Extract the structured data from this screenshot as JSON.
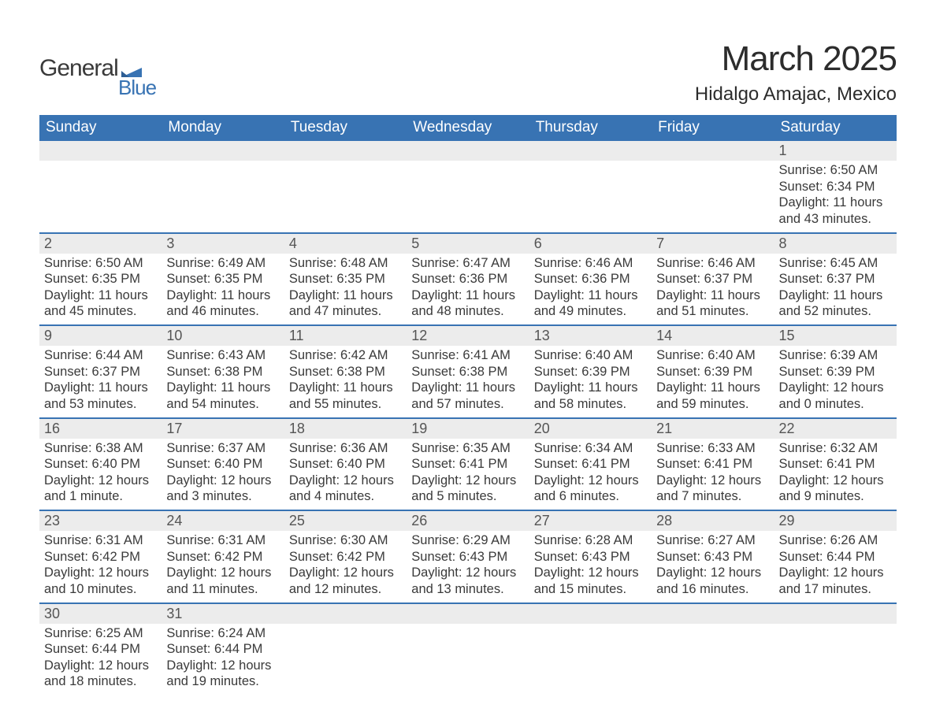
{
  "brand": {
    "name1": "General",
    "name2": "Blue",
    "flag_color": "#3873b3"
  },
  "title": "March 2025",
  "subtitle": "Hidalgo Amajac, Mexico",
  "colors": {
    "header_bg": "#3873b3",
    "header_text": "#ffffff",
    "daynum_bg": "#ececec",
    "row_border": "#3873b3",
    "body_text": "#3a3a3a"
  },
  "fonts": {
    "title_pt": 44,
    "subtitle_pt": 24,
    "weekday_pt": 19,
    "daynum_pt": 18,
    "body_pt": 16.5
  },
  "weekdays": [
    "Sunday",
    "Monday",
    "Tuesday",
    "Wednesday",
    "Thursday",
    "Friday",
    "Saturday"
  ],
  "weeks": [
    [
      null,
      null,
      null,
      null,
      null,
      null,
      {
        "n": "1",
        "sr": "Sunrise: 6:50 AM",
        "ss": "Sunset: 6:34 PM",
        "d1": "Daylight: 11 hours",
        "d2": "and 43 minutes."
      }
    ],
    [
      {
        "n": "2",
        "sr": "Sunrise: 6:50 AM",
        "ss": "Sunset: 6:35 PM",
        "d1": "Daylight: 11 hours",
        "d2": "and 45 minutes."
      },
      {
        "n": "3",
        "sr": "Sunrise: 6:49 AM",
        "ss": "Sunset: 6:35 PM",
        "d1": "Daylight: 11 hours",
        "d2": "and 46 minutes."
      },
      {
        "n": "4",
        "sr": "Sunrise: 6:48 AM",
        "ss": "Sunset: 6:35 PM",
        "d1": "Daylight: 11 hours",
        "d2": "and 47 minutes."
      },
      {
        "n": "5",
        "sr": "Sunrise: 6:47 AM",
        "ss": "Sunset: 6:36 PM",
        "d1": "Daylight: 11 hours",
        "d2": "and 48 minutes."
      },
      {
        "n": "6",
        "sr": "Sunrise: 6:46 AM",
        "ss": "Sunset: 6:36 PM",
        "d1": "Daylight: 11 hours",
        "d2": "and 49 minutes."
      },
      {
        "n": "7",
        "sr": "Sunrise: 6:46 AM",
        "ss": "Sunset: 6:37 PM",
        "d1": "Daylight: 11 hours",
        "d2": "and 51 minutes."
      },
      {
        "n": "8",
        "sr": "Sunrise: 6:45 AM",
        "ss": "Sunset: 6:37 PM",
        "d1": "Daylight: 11 hours",
        "d2": "and 52 minutes."
      }
    ],
    [
      {
        "n": "9",
        "sr": "Sunrise: 6:44 AM",
        "ss": "Sunset: 6:37 PM",
        "d1": "Daylight: 11 hours",
        "d2": "and 53 minutes."
      },
      {
        "n": "10",
        "sr": "Sunrise: 6:43 AM",
        "ss": "Sunset: 6:38 PM",
        "d1": "Daylight: 11 hours",
        "d2": "and 54 minutes."
      },
      {
        "n": "11",
        "sr": "Sunrise: 6:42 AM",
        "ss": "Sunset: 6:38 PM",
        "d1": "Daylight: 11 hours",
        "d2": "and 55 minutes."
      },
      {
        "n": "12",
        "sr": "Sunrise: 6:41 AM",
        "ss": "Sunset: 6:38 PM",
        "d1": "Daylight: 11 hours",
        "d2": "and 57 minutes."
      },
      {
        "n": "13",
        "sr": "Sunrise: 6:40 AM",
        "ss": "Sunset: 6:39 PM",
        "d1": "Daylight: 11 hours",
        "d2": "and 58 minutes."
      },
      {
        "n": "14",
        "sr": "Sunrise: 6:40 AM",
        "ss": "Sunset: 6:39 PM",
        "d1": "Daylight: 11 hours",
        "d2": "and 59 minutes."
      },
      {
        "n": "15",
        "sr": "Sunrise: 6:39 AM",
        "ss": "Sunset: 6:39 PM",
        "d1": "Daylight: 12 hours",
        "d2": "and 0 minutes."
      }
    ],
    [
      {
        "n": "16",
        "sr": "Sunrise: 6:38 AM",
        "ss": "Sunset: 6:40 PM",
        "d1": "Daylight: 12 hours",
        "d2": "and 1 minute."
      },
      {
        "n": "17",
        "sr": "Sunrise: 6:37 AM",
        "ss": "Sunset: 6:40 PM",
        "d1": "Daylight: 12 hours",
        "d2": "and 3 minutes."
      },
      {
        "n": "18",
        "sr": "Sunrise: 6:36 AM",
        "ss": "Sunset: 6:40 PM",
        "d1": "Daylight: 12 hours",
        "d2": "and 4 minutes."
      },
      {
        "n": "19",
        "sr": "Sunrise: 6:35 AM",
        "ss": "Sunset: 6:41 PM",
        "d1": "Daylight: 12 hours",
        "d2": "and 5 minutes."
      },
      {
        "n": "20",
        "sr": "Sunrise: 6:34 AM",
        "ss": "Sunset: 6:41 PM",
        "d1": "Daylight: 12 hours",
        "d2": "and 6 minutes."
      },
      {
        "n": "21",
        "sr": "Sunrise: 6:33 AM",
        "ss": "Sunset: 6:41 PM",
        "d1": "Daylight: 12 hours",
        "d2": "and 7 minutes."
      },
      {
        "n": "22",
        "sr": "Sunrise: 6:32 AM",
        "ss": "Sunset: 6:41 PM",
        "d1": "Daylight: 12 hours",
        "d2": "and 9 minutes."
      }
    ],
    [
      {
        "n": "23",
        "sr": "Sunrise: 6:31 AM",
        "ss": "Sunset: 6:42 PM",
        "d1": "Daylight: 12 hours",
        "d2": "and 10 minutes."
      },
      {
        "n": "24",
        "sr": "Sunrise: 6:31 AM",
        "ss": "Sunset: 6:42 PM",
        "d1": "Daylight: 12 hours",
        "d2": "and 11 minutes."
      },
      {
        "n": "25",
        "sr": "Sunrise: 6:30 AM",
        "ss": "Sunset: 6:42 PM",
        "d1": "Daylight: 12 hours",
        "d2": "and 12 minutes."
      },
      {
        "n": "26",
        "sr": "Sunrise: 6:29 AM",
        "ss": "Sunset: 6:43 PM",
        "d1": "Daylight: 12 hours",
        "d2": "and 13 minutes."
      },
      {
        "n": "27",
        "sr": "Sunrise: 6:28 AM",
        "ss": "Sunset: 6:43 PM",
        "d1": "Daylight: 12 hours",
        "d2": "and 15 minutes."
      },
      {
        "n": "28",
        "sr": "Sunrise: 6:27 AM",
        "ss": "Sunset: 6:43 PM",
        "d1": "Daylight: 12 hours",
        "d2": "and 16 minutes."
      },
      {
        "n": "29",
        "sr": "Sunrise: 6:26 AM",
        "ss": "Sunset: 6:44 PM",
        "d1": "Daylight: 12 hours",
        "d2": "and 17 minutes."
      }
    ],
    [
      {
        "n": "30",
        "sr": "Sunrise: 6:25 AM",
        "ss": "Sunset: 6:44 PM",
        "d1": "Daylight: 12 hours",
        "d2": "and 18 minutes."
      },
      {
        "n": "31",
        "sr": "Sunrise: 6:24 AM",
        "ss": "Sunset: 6:44 PM",
        "d1": "Daylight: 12 hours",
        "d2": "and 19 minutes."
      },
      null,
      null,
      null,
      null,
      null
    ]
  ]
}
